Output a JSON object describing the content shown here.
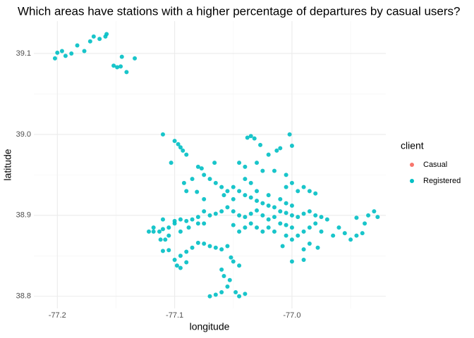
{
  "chart_data": {
    "type": "scatter",
    "title": "Which areas have stations with a higher percentage of departures by casual users?",
    "x_label": "longitude",
    "y_label": "latitude",
    "legend_title": "client",
    "xlim": [
      -77.22,
      -76.92
    ],
    "ylim": [
      38.785,
      39.14
    ],
    "xticks": [
      -77.2,
      -77.1,
      {
        "value": -77,
        "label": "-77.0"
      }
    ],
    "yticks": [
      38.8,
      38.9,
      {
        "value": 39,
        "label": "39.0"
      },
      39.1
    ],
    "grid": true,
    "legend_position": "right",
    "series": [
      {
        "name": "Casual",
        "color": "#F8766D",
        "x": [],
        "y": []
      },
      {
        "name": "Registered",
        "color": "#00BFC4",
        "x": [
          -77.202,
          -77.2,
          -77.196,
          -77.193,
          -77.188,
          -77.183,
          -77.177,
          -77.172,
          -77.169,
          -77.164,
          -77.158,
          -77.159,
          -77.152,
          -77.149,
          -77.146,
          -77.145,
          -77.141,
          -77.134,
          -77.11,
          -77.1,
          -77.097,
          -77.095,
          -77.093,
          -77.09,
          -77.103,
          -77.08,
          -77.077,
          -77.075,
          -77.07,
          -77.065,
          -77.06,
          -77.058,
          -77.055,
          -77.05,
          -77.085,
          -77.081,
          -77.09,
          -77.092,
          -77.066,
          -77.075,
          -77.035,
          -77.038,
          -77.032,
          -77.027,
          -77.02,
          -77.013,
          -77.01,
          -77.002,
          -77,
          -77.03,
          -77.04,
          -77.045,
          -77.015,
          -77.005,
          -77.025,
          -77.04,
          -77.035,
          -77.05,
          -77.045,
          -77.04,
          -77.035,
          -77.03,
          -77.025,
          -77.02,
          -77.015,
          -77.01,
          -77.005,
          -77,
          -76.995,
          -76.99,
          -76.985,
          -76.98,
          -76.975,
          -76.97,
          -77.05,
          -77.045,
          -77.04,
          -77.035,
          -77.03,
          -77.025,
          -77.02,
          -77.015,
          -77.01,
          -77.005,
          -77,
          -77.055,
          -77.06,
          -77.065,
          -77.07,
          -77.075,
          -77.08,
          -77.085,
          -77.09,
          -77.095,
          -77.1,
          -77.105,
          -77.11,
          -77.118,
          -77.112,
          -77.105,
          -77.095,
          -77.088,
          -77.08,
          -77.035,
          -77.03,
          -77.04,
          -77.045,
          -77.05,
          -77.025,
          -77.02,
          -77.015,
          -77.005,
          -77,
          -76.995,
          -76.99,
          -76.985,
          -76.98,
          -76.975,
          -76.965,
          -76.96,
          -76.955,
          -76.95,
          -76.945,
          -76.94,
          -76.935,
          -76.93,
          -76.927,
          -76.938,
          -76.945,
          -76.985,
          -76.99,
          -76.978,
          -77,
          -76.99,
          -77.008,
          -77.03,
          -77.02,
          -77.01,
          -77.005,
          -77,
          -76.995,
          -76.99,
          -76.985,
          -76.98,
          -77.005,
          -77,
          -77.07,
          -77.065,
          -77.06,
          -77.055,
          -77.052,
          -77.05,
          -77.045,
          -77.06,
          -77.058,
          -77.053,
          -77.055,
          -77.048,
          -77.045,
          -77.04,
          -77.06,
          -77.065,
          -77.07,
          -77.075,
          -77.08,
          -77.085,
          -77.09,
          -77.095,
          -77.1,
          -77.105,
          -77.11,
          -77.098,
          -77.095,
          -77.09,
          -77.113,
          -77.108,
          -77.122,
          -77.118,
          -77.11,
          -77.1,
          -77.075
        ],
        "y": [
          39.094,
          39.101,
          39.103,
          39.097,
          39.1,
          39.11,
          39.103,
          39.115,
          39.121,
          39.118,
          39.124,
          39.121,
          39.085,
          39.083,
          39.084,
          39.096,
          39.077,
          39.094,
          39,
          38.992,
          38.988,
          38.984,
          38.98,
          38.975,
          38.965,
          38.96,
          38.958,
          38.95,
          38.945,
          38.94,
          38.935,
          38.925,
          38.93,
          38.92,
          38.945,
          38.929,
          38.93,
          38.94,
          38.965,
          38.92,
          38.998,
          38.996,
          38.995,
          38.987,
          38.975,
          38.98,
          38.983,
          39,
          38.986,
          38.965,
          38.96,
          38.965,
          38.955,
          38.95,
          38.955,
          38.945,
          38.94,
          38.935,
          38.93,
          38.925,
          38.922,
          38.918,
          38.915,
          38.912,
          38.91,
          38.905,
          38.903,
          38.9,
          38.898,
          38.902,
          38.905,
          38.9,
          38.898,
          38.895,
          38.905,
          38.9,
          38.898,
          38.902,
          38.906,
          38.9,
          38.895,
          38.898,
          38.89,
          38.888,
          38.885,
          38.91,
          38.905,
          38.902,
          38.9,
          38.905,
          38.898,
          38.895,
          38.893,
          38.895,
          38.89,
          38.885,
          38.883,
          38.88,
          38.87,
          38.875,
          38.88,
          38.885,
          38.89,
          38.89,
          38.885,
          38.885,
          38.88,
          38.888,
          38.88,
          38.885,
          38.88,
          38.875,
          38.87,
          38.875,
          38.88,
          38.885,
          38.89,
          38.88,
          38.875,
          38.885,
          38.878,
          38.87,
          38.875,
          38.878,
          38.9,
          38.905,
          38.898,
          38.89,
          38.897,
          38.865,
          38.858,
          38.86,
          38.843,
          38.845,
          38.862,
          38.93,
          38.925,
          38.92,
          38.915,
          38.912,
          38.93,
          38.935,
          38.93,
          38.927,
          38.935,
          38.94,
          38.862,
          38.86,
          38.858,
          38.862,
          38.848,
          38.843,
          38.838,
          38.833,
          38.825,
          38.82,
          38.812,
          38.805,
          38.8,
          38.803,
          38.805,
          38.802,
          38.8,
          38.865,
          38.866,
          38.86,
          38.855,
          38.85,
          38.845,
          38.857,
          38.856,
          38.838,
          38.835,
          38.842,
          38.88,
          38.87,
          38.88,
          38.885,
          38.895,
          38.893,
          38.89
        ]
      }
    ]
  }
}
